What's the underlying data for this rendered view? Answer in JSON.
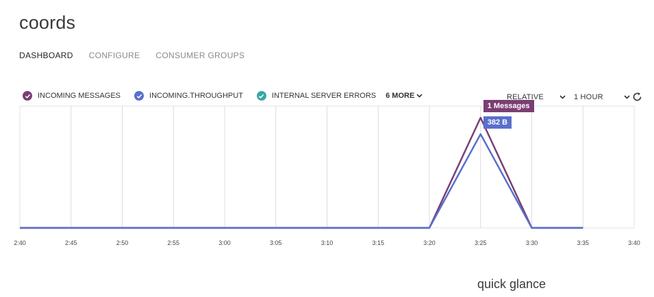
{
  "page": {
    "title": "coords"
  },
  "tabs": [
    {
      "label": "DASHBOARD",
      "active": true
    },
    {
      "label": "CONFIGURE",
      "active": false
    },
    {
      "label": "CONSUMER GROUPS",
      "active": false
    }
  ],
  "legend": {
    "items": [
      {
        "label": "INCOMING MESSAGES",
        "color": "#7a3e73",
        "icon": "check-icon"
      },
      {
        "label": "INCOMING.THROUGHPUT",
        "color": "#5a6fcc",
        "icon": "check-icon"
      },
      {
        "label": "INTERNAL SERVER ERRORS",
        "color": "#3aa6a6",
        "icon": "check-icon"
      }
    ],
    "more_label": "6 MORE"
  },
  "controls": {
    "mode_label": "RELATIVE",
    "range_label": "1 HOUR",
    "refresh_icon": "refresh-icon"
  },
  "chart_data": {
    "type": "line",
    "x": [
      "2:40",
      "2:45",
      "2:50",
      "2:55",
      "3:00",
      "3:05",
      "3:10",
      "3:15",
      "3:20",
      "3:25",
      "3:30",
      "3:35",
      "3:40"
    ],
    "series": [
      {
        "name": "INCOMING MESSAGES",
        "color": "#7a3e73",
        "values": [
          0,
          0,
          0,
          0,
          0,
          0,
          0,
          0,
          0,
          1,
          0,
          0,
          null
        ]
      },
      {
        "name": "INCOMING.THROUGHPUT",
        "color": "#5a6fcc",
        "values": [
          0,
          0,
          0,
          0,
          0,
          0,
          0,
          0,
          0,
          382,
          0,
          0,
          null
        ]
      }
    ],
    "grid": true,
    "tooltips": [
      {
        "series": "INCOMING MESSAGES",
        "label": "1 Messages",
        "x": "3:25"
      },
      {
        "series": "INCOMING.THROUGHPUT",
        "label": "382 B",
        "x": "3:25"
      }
    ]
  },
  "footer": {
    "label": "quick glance"
  }
}
